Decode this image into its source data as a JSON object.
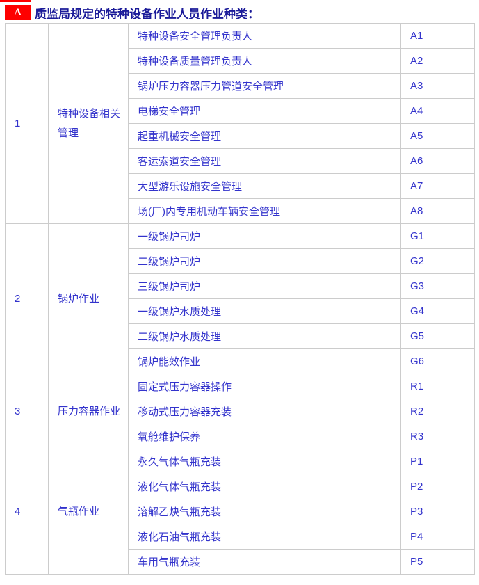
{
  "page": {
    "badge": "A",
    "title": "质监局规定的特种设备作业人员作业种类：",
    "colors": {
      "badge_bg": "#fe0000",
      "badge_text": "#ffffff",
      "title_text": "#1b1b99",
      "table_text": "#3333cc",
      "border": "#cccccc"
    }
  },
  "table": {
    "groups": [
      {
        "num": "1",
        "category": "特种设备相关管理",
        "items": [
          {
            "job": "特种设备安全管理负责人",
            "code": "A1"
          },
          {
            "job": "特种设备质量管理负责人",
            "code": "A2"
          },
          {
            "job": "锅炉压力容器压力管道安全管理",
            "code": "A3"
          },
          {
            "job": "电梯安全管理",
            "code": "A4"
          },
          {
            "job": "起重机械安全管理",
            "code": "A5"
          },
          {
            "job": "客运索道安全管理",
            "code": "A6"
          },
          {
            "job": "大型游乐设施安全管理",
            "code": "A7"
          },
          {
            "job": "场(厂)内专用机动车辆安全管理",
            "code": "A8"
          }
        ]
      },
      {
        "num": "2",
        "category": "锅炉作业",
        "items": [
          {
            "job": "一级锅炉司炉",
            "code": "G1"
          },
          {
            "job": "二级锅炉司炉",
            "code": "G2"
          },
          {
            "job": "三级锅炉司炉",
            "code": "G3"
          },
          {
            "job": "一级锅炉水质处理",
            "code": "G4"
          },
          {
            "job": "二级锅炉水质处理",
            "code": "G5"
          },
          {
            "job": "锅炉能效作业",
            "code": "G6"
          }
        ]
      },
      {
        "num": "3",
        "category": "压力容器作业",
        "items": [
          {
            "job": "固定式压力容器操作",
            "code": "R1"
          },
          {
            "job": "移动式压力容器充装",
            "code": "R2"
          },
          {
            "job": "氧舱维护保养",
            "code": "R3"
          }
        ]
      },
      {
        "num": "4",
        "category": "气瓶作业",
        "items": [
          {
            "job": "永久气体气瓶充装",
            "code": "P1"
          },
          {
            "job": "液化气体气瓶充装",
            "code": "P2"
          },
          {
            "job": "溶解乙炔气瓶充装",
            "code": "P3"
          },
          {
            "job": "液化石油气瓶充装",
            "code": "P4"
          },
          {
            "job": "车用气瓶充装",
            "code": "P5"
          }
        ]
      }
    ]
  }
}
